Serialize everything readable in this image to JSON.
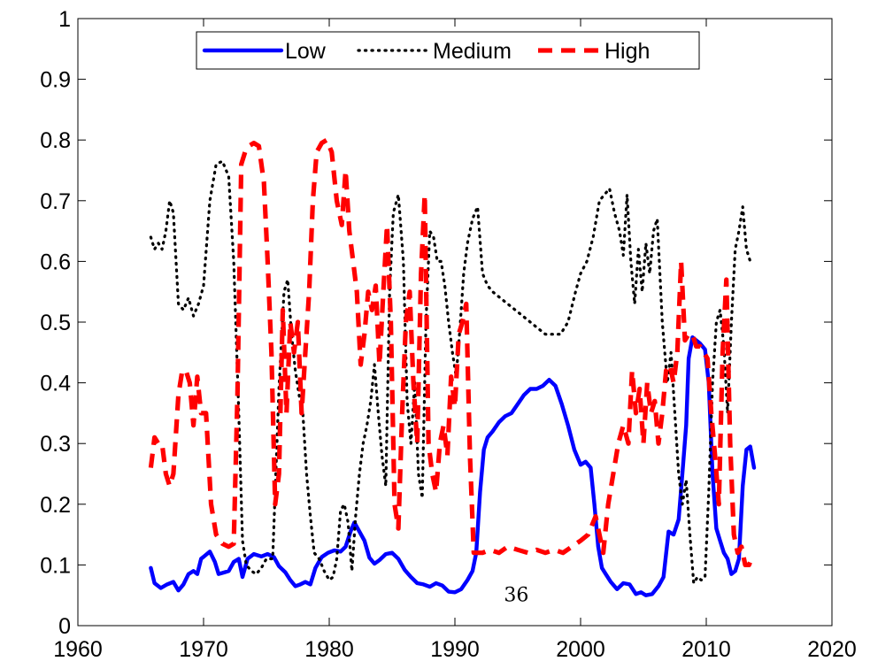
{
  "chart_data": {
    "type": "line",
    "title": "",
    "xlabel": "",
    "ylabel": "",
    "xlim": [
      1960,
      2020
    ],
    "ylim": [
      0,
      1
    ],
    "xticks": [
      1960,
      1970,
      1980,
      1990,
      2000,
      2010,
      2020
    ],
    "yticks": [
      0,
      0.1,
      0.2,
      0.3,
      0.4,
      0.5,
      0.6,
      0.7,
      0.8,
      0.9,
      1
    ],
    "xtick_labels": [
      "1960",
      "1970",
      "1980",
      "1990",
      "2000",
      "2010",
      "2020"
    ],
    "ytick_labels": [
      "0",
      "0.1",
      "0.2",
      "0.3",
      "0.4",
      "0.5",
      "0.6",
      "0.7",
      "0.8",
      "0.9",
      "1"
    ],
    "grid": false,
    "legend_position": "top-center",
    "series": [
      {
        "name": "Low",
        "color": "#0000ff",
        "style": "solid",
        "x": [
          1965.8,
          1966.1,
          1966.6,
          1967.1,
          1967.6,
          1968.0,
          1968.4,
          1968.8,
          1969.2,
          1969.5,
          1969.8,
          1970.1,
          1970.5,
          1970.9,
          1971.2,
          1971.7,
          1972.0,
          1972.4,
          1972.8,
          1973.1,
          1973.5,
          1974.0,
          1974.6,
          1975.1,
          1975.6,
          1976.0,
          1976.5,
          1976.9,
          1977.3,
          1977.7,
          1978.1,
          1978.5,
          1978.9,
          1979.4,
          1979.9,
          1980.4,
          1980.9,
          1981.3,
          1981.7,
          1982.0,
          1982.4,
          1982.8,
          1983.2,
          1983.6,
          1984.0,
          1984.5,
          1985.0,
          1985.5,
          1986.0,
          1986.5,
          1987.0,
          1987.5,
          1988.0,
          1988.5,
          1989.0,
          1989.5,
          1990.0,
          1990.5,
          1991.0,
          1991.4,
          1991.7,
          1992.0,
          1992.3,
          1992.6,
          1993.0,
          1993.5,
          1994.0,
          1994.5,
          1995.0,
          1995.5,
          1996.0,
          1996.5,
          1997.0,
          1997.5,
          1998.0,
          1998.5,
          1999.0,
          1999.5,
          2000.0,
          2000.4,
          2000.8,
          2001.1,
          2001.4,
          2001.7,
          2002.0,
          2002.4,
          2002.9,
          2003.4,
          2003.9,
          2004.4,
          2004.8,
          2005.2,
          2005.7,
          2006.2,
          2006.6,
          2007.0,
          2007.4,
          2007.8,
          2008.1,
          2008.4,
          2008.6,
          2008.9,
          2009.2,
          2009.5,
          2009.9,
          2010.2,
          2010.5,
          2010.8,
          2011.1,
          2011.4,
          2011.7,
          2012.0,
          2012.3,
          2012.6,
          2012.9,
          2013.2,
          2013.5,
          2013.8
        ],
        "y": [
          0.095,
          0.07,
          0.062,
          0.068,
          0.072,
          0.058,
          0.068,
          0.085,
          0.09,
          0.085,
          0.11,
          0.115,
          0.122,
          0.105,
          0.085,
          0.088,
          0.09,
          0.105,
          0.11,
          0.08,
          0.11,
          0.118,
          0.114,
          0.118,
          0.113,
          0.098,
          0.088,
          0.075,
          0.065,
          0.068,
          0.072,
          0.068,
          0.095,
          0.113,
          0.12,
          0.124,
          0.122,
          0.13,
          0.155,
          0.17,
          0.155,
          0.14,
          0.112,
          0.102,
          0.108,
          0.118,
          0.12,
          0.11,
          0.092,
          0.08,
          0.07,
          0.068,
          0.064,
          0.07,
          0.066,
          0.056,
          0.055,
          0.06,
          0.075,
          0.09,
          0.12,
          0.22,
          0.29,
          0.31,
          0.32,
          0.335,
          0.345,
          0.35,
          0.365,
          0.38,
          0.39,
          0.39,
          0.395,
          0.405,
          0.395,
          0.365,
          0.33,
          0.29,
          0.265,
          0.27,
          0.26,
          0.2,
          0.13,
          0.095,
          0.085,
          0.072,
          0.06,
          0.07,
          0.068,
          0.052,
          0.055,
          0.05,
          0.052,
          0.065,
          0.08,
          0.155,
          0.15,
          0.175,
          0.25,
          0.33,
          0.44,
          0.475,
          0.47,
          0.465,
          0.455,
          0.4,
          0.25,
          0.16,
          0.14,
          0.12,
          0.11,
          0.085,
          0.09,
          0.11,
          0.23,
          0.29,
          0.295,
          0.26
        ]
      },
      {
        "name": "Medium",
        "color": "#000000",
        "style": "dotted",
        "x": [
          1965.8,
          1966.1,
          1966.4,
          1966.7,
          1967.0,
          1967.3,
          1967.6,
          1968.0,
          1968.4,
          1968.8,
          1969.2,
          1969.6,
          1970.0,
          1970.5,
          1971.0,
          1971.5,
          1972.0,
          1972.4,
          1972.8,
          1973.1,
          1973.4,
          1973.8,
          1974.2,
          1974.6,
          1975.0,
          1975.5,
          1976.0,
          1976.4,
          1976.7,
          1977.0,
          1977.3,
          1977.6,
          1977.9,
          1978.2,
          1978.5,
          1978.8,
          1979.2,
          1979.6,
          1980.0,
          1980.3,
          1980.6,
          1980.9,
          1981.2,
          1981.5,
          1981.8,
          1982.1,
          1982.4,
          1982.7,
          1983.0,
          1983.3,
          1983.6,
          1983.9,
          1984.2,
          1984.5,
          1984.8,
          1985.1,
          1985.5,
          1985.9,
          1986.2,
          1986.5,
          1986.8,
          1987.1,
          1987.4,
          1987.7,
          1988.0,
          1988.3,
          1988.6,
          1988.9,
          1989.2,
          1989.5,
          1989.8,
          1990.1,
          1990.4,
          1990.7,
          1991.0,
          1991.4,
          1991.8,
          1992.2,
          1992.6,
          1993.0,
          1993.6,
          1994.2,
          1994.8,
          1995.4,
          1996.0,
          1996.6,
          1997.2,
          1997.8,
          1998.4,
          1999.0,
          1999.6,
          2000.0,
          2000.5,
          2001.0,
          2001.5,
          2001.9,
          2002.3,
          2002.7,
          2003.1,
          2003.4,
          2003.7,
          2004.0,
          2004.3,
          2004.6,
          2004.9,
          2005.2,
          2005.5,
          2005.8,
          2006.1,
          2006.5,
          2006.9,
          2007.2,
          2007.5,
          2007.8,
          2008.1,
          2008.4,
          2008.7,
          2009.0,
          2009.3,
          2009.6,
          2009.9,
          2010.2,
          2010.5,
          2010.8,
          2011.1,
          2011.4,
          2011.7,
          2012.0,
          2012.3,
          2012.6,
          2012.9,
          2013.2,
          2013.5
        ],
        "y": [
          0.64,
          0.62,
          0.63,
          0.62,
          0.65,
          0.7,
          0.68,
          0.53,
          0.52,
          0.54,
          0.51,
          0.53,
          0.56,
          0.7,
          0.76,
          0.765,
          0.74,
          0.6,
          0.35,
          0.14,
          0.1,
          0.09,
          0.085,
          0.095,
          0.11,
          0.11,
          0.39,
          0.55,
          0.57,
          0.48,
          0.42,
          0.38,
          0.35,
          0.25,
          0.18,
          0.12,
          0.11,
          0.09,
          0.075,
          0.08,
          0.11,
          0.19,
          0.2,
          0.17,
          0.09,
          0.18,
          0.25,
          0.3,
          0.33,
          0.37,
          0.43,
          0.35,
          0.28,
          0.23,
          0.55,
          0.68,
          0.71,
          0.6,
          0.37,
          0.3,
          0.4,
          0.25,
          0.21,
          0.5,
          0.65,
          0.64,
          0.6,
          0.6,
          0.56,
          0.5,
          0.45,
          0.41,
          0.49,
          0.58,
          0.63,
          0.67,
          0.69,
          0.58,
          0.56,
          0.55,
          0.54,
          0.53,
          0.52,
          0.51,
          0.5,
          0.49,
          0.48,
          0.48,
          0.48,
          0.5,
          0.55,
          0.58,
          0.6,
          0.64,
          0.7,
          0.71,
          0.72,
          0.68,
          0.65,
          0.61,
          0.71,
          0.6,
          0.53,
          0.62,
          0.55,
          0.63,
          0.58,
          0.65,
          0.67,
          0.5,
          0.4,
          0.45,
          0.35,
          0.25,
          0.2,
          0.24,
          0.15,
          0.07,
          0.08,
          0.075,
          0.08,
          0.22,
          0.4,
          0.5,
          0.52,
          0.46,
          0.35,
          0.5,
          0.62,
          0.65,
          0.69,
          0.62,
          0.6
        ]
      },
      {
        "name": "High",
        "color": "#ff0000",
        "style": "dashed",
        "x": [
          1965.8,
          1966.1,
          1966.4,
          1966.7,
          1967.0,
          1967.3,
          1967.6,
          1968.0,
          1968.3,
          1968.6,
          1968.9,
          1969.2,
          1969.5,
          1969.8,
          1970.2,
          1970.6,
          1971.0,
          1971.5,
          1972.0,
          1972.4,
          1972.7,
          1973.0,
          1973.3,
          1973.6,
          1974.0,
          1974.4,
          1974.8,
          1975.1,
          1975.4,
          1975.7,
          1976.0,
          1976.3,
          1976.6,
          1976.9,
          1977.2,
          1977.5,
          1977.8,
          1978.1,
          1978.4,
          1978.7,
          1979.0,
          1979.4,
          1979.8,
          1980.2,
          1980.6,
          1981.0,
          1981.3,
          1981.6,
          1981.9,
          1982.2,
          1982.5,
          1982.8,
          1983.1,
          1983.4,
          1983.7,
          1984.0,
          1984.3,
          1984.6,
          1984.9,
          1985.2,
          1985.5,
          1985.8,
          1986.1,
          1986.4,
          1986.7,
          1987.0,
          1987.3,
          1987.6,
          1987.9,
          1988.2,
          1988.5,
          1988.8,
          1989.1,
          1989.4,
          1989.7,
          1990.0,
          1990.3,
          1990.6,
          1990.9,
          1991.2,
          1991.5,
          1991.8,
          1992.2,
          1992.8,
          1993.5,
          1994.2,
          1995.0,
          1995.8,
          1996.5,
          1997.2,
          1997.9,
          1998.6,
          1999.3,
          2000.0,
          2000.6,
          2001.2,
          2001.8,
          2002.2,
          2002.6,
          2003.0,
          2003.4,
          2003.8,
          2004.1,
          2004.4,
          2004.7,
          2005.0,
          2005.3,
          2005.6,
          2005.9,
          2006.2,
          2006.5,
          2006.8,
          2007.1,
          2007.4,
          2007.7,
          2008.0,
          2008.3,
          2008.6,
          2008.9,
          2009.2,
          2009.5,
          2009.8,
          2010.1,
          2010.4,
          2010.7,
          2011.0,
          2011.3,
          2011.6,
          2011.9,
          2012.2,
          2012.5,
          2012.8,
          2013.1,
          2013.4,
          2013.7
        ],
        "y": [
          0.26,
          0.31,
          0.3,
          0.3,
          0.25,
          0.23,
          0.25,
          0.38,
          0.42,
          0.42,
          0.4,
          0.33,
          0.41,
          0.35,
          0.35,
          0.2,
          0.15,
          0.135,
          0.13,
          0.135,
          0.38,
          0.76,
          0.78,
          0.79,
          0.795,
          0.79,
          0.73,
          0.6,
          0.45,
          0.2,
          0.25,
          0.52,
          0.35,
          0.5,
          0.45,
          0.5,
          0.35,
          0.45,
          0.55,
          0.7,
          0.78,
          0.795,
          0.8,
          0.78,
          0.7,
          0.66,
          0.75,
          0.65,
          0.6,
          0.55,
          0.43,
          0.48,
          0.55,
          0.52,
          0.56,
          0.43,
          0.55,
          0.66,
          0.5,
          0.2,
          0.16,
          0.35,
          0.5,
          0.55,
          0.4,
          0.3,
          0.58,
          0.71,
          0.3,
          0.25,
          0.22,
          0.3,
          0.33,
          0.28,
          0.41,
          0.36,
          0.48,
          0.5,
          0.53,
          0.28,
          0.12,
          0.12,
          0.12,
          0.125,
          0.12,
          0.13,
          0.125,
          0.12,
          0.125,
          0.12,
          0.125,
          0.12,
          0.13,
          0.14,
          0.15,
          0.18,
          0.12,
          0.2,
          0.25,
          0.3,
          0.33,
          0.3,
          0.42,
          0.35,
          0.39,
          0.3,
          0.4,
          0.35,
          0.37,
          0.3,
          0.35,
          0.42,
          0.43,
          0.4,
          0.45,
          0.6,
          0.47,
          0.48,
          0.48,
          0.46,
          0.46,
          0.45,
          0.44,
          0.35,
          0.28,
          0.2,
          0.45,
          0.57,
          0.3,
          0.15,
          0.12,
          0.13,
          0.1,
          0.1,
          0.115
        ]
      }
    ],
    "annotations": [
      {
        "text": "36",
        "x": 1993.9,
        "y": 0.052
      }
    ]
  }
}
